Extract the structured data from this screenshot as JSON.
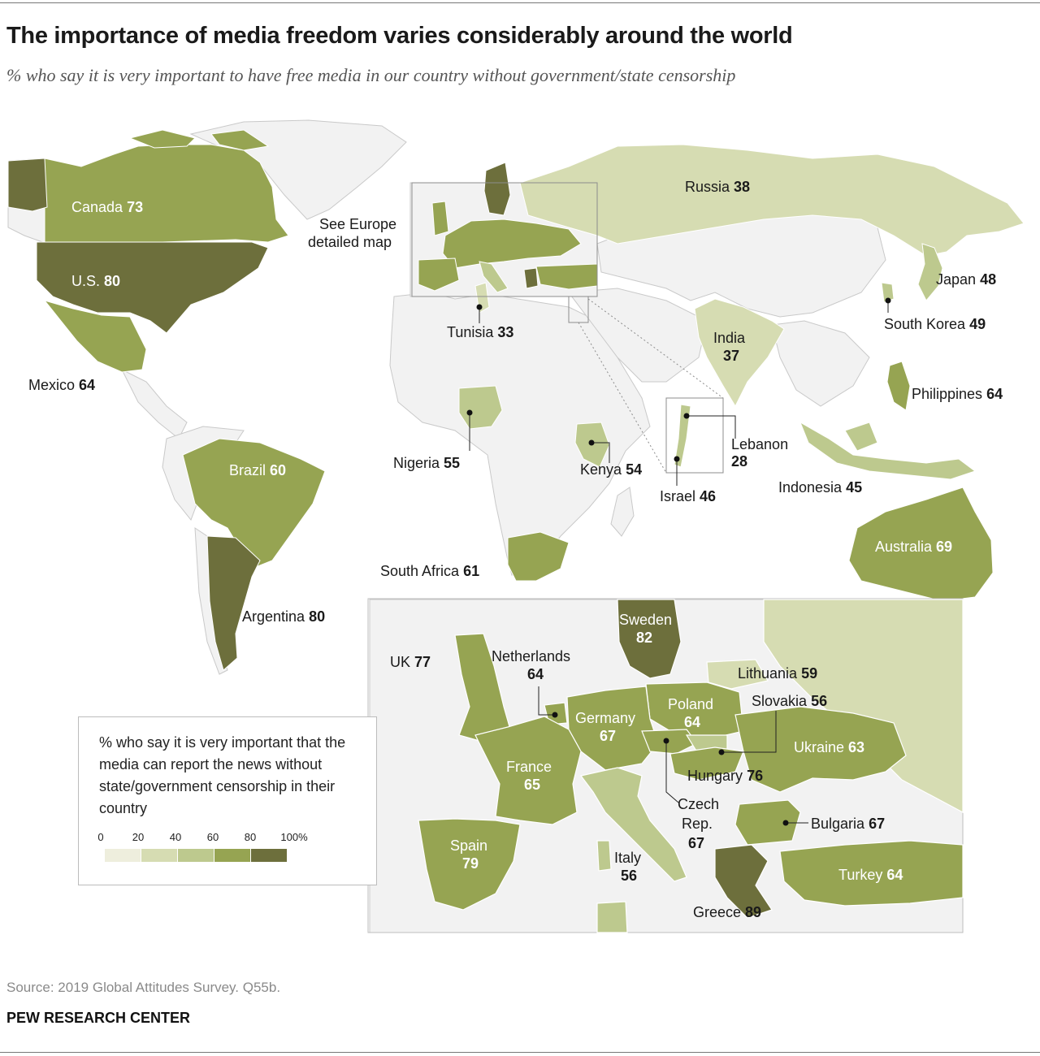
{
  "title": "The importance of media freedom varies considerably around the world",
  "subtitle": "% who say it is very important to have free media in our country without government/state censorship",
  "source": "Source: 2019 Global Attitudes Survey. Q55b.",
  "organization": "PEW RESEARCH CENTER",
  "europe_note": [
    "See Europe",
    "detailed map"
  ],
  "legend": {
    "text": "% who say it is very important that the media can report the news without state/government censorship in their country",
    "ticks": [
      "0",
      "20",
      "40",
      "60",
      "80",
      "100%"
    ],
    "colors": [
      "#eeeedd",
      "#d6dcb2",
      "#bdc98e",
      "#96a452",
      "#6d6f3c"
    ]
  },
  "colors": {
    "no_data": "#f2f2f2",
    "border": "#c9c9c9",
    "water": "#ffffff",
    "bin_0_20": "#eeeedd",
    "bin_20_40": "#d6dcb2",
    "bin_40_60": "#bdc98e",
    "bin_60_80": "#96a452",
    "bin_80_100": "#6d6f3c"
  },
  "countries": [
    {
      "name": "Canada",
      "value": 73
    },
    {
      "name": "U.S.",
      "value": 80
    },
    {
      "name": "Mexico",
      "value": 64
    },
    {
      "name": "Brazil",
      "value": 60
    },
    {
      "name": "Argentina",
      "value": 80
    },
    {
      "name": "Russia",
      "value": 38
    },
    {
      "name": "Tunisia",
      "value": 33
    },
    {
      "name": "Nigeria",
      "value": 55
    },
    {
      "name": "Kenya",
      "value": 54
    },
    {
      "name": "South Africa",
      "value": 61
    },
    {
      "name": "Israel",
      "value": 46
    },
    {
      "name": "Lebanon",
      "value": 28
    },
    {
      "name": "India",
      "value": 37
    },
    {
      "name": "Japan",
      "value": 48
    },
    {
      "name": "South Korea",
      "value": 49
    },
    {
      "name": "Philippines",
      "value": 64
    },
    {
      "name": "Indonesia",
      "value": 45
    },
    {
      "name": "Australia",
      "value": 69
    }
  ],
  "europe": [
    {
      "name": "Sweden",
      "value": 82
    },
    {
      "name": "UK",
      "value": 77
    },
    {
      "name": "Netherlands",
      "value": 64
    },
    {
      "name": "Lithuania",
      "value": 59
    },
    {
      "name": "Poland",
      "value": 64
    },
    {
      "name": "Slovakia",
      "value": 56
    },
    {
      "name": "Germany",
      "value": 67
    },
    {
      "name": "Ukraine",
      "value": 63
    },
    {
      "name": "France",
      "value": 65
    },
    {
      "name": "Hungary",
      "value": 76
    },
    {
      "name": "Czech Rep.",
      "value": 67
    },
    {
      "name": "Bulgaria",
      "value": 67
    },
    {
      "name": "Spain",
      "value": 79
    },
    {
      "name": "Italy",
      "value": 56
    },
    {
      "name": "Turkey",
      "value": 64
    },
    {
      "name": "Greece",
      "value": 89
    }
  ]
}
